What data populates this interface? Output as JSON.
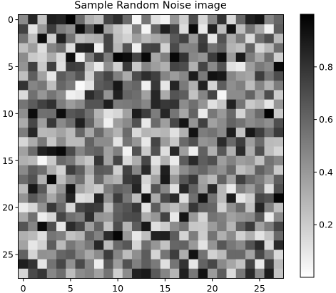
{
  "chart_data": {
    "type": "heatmap",
    "title": "Sample Random Noise image",
    "colormap": "gray_r",
    "rows": 28,
    "cols": 28,
    "x_ticks": [
      0,
      5,
      10,
      15,
      20,
      25
    ],
    "y_ticks": [
      0,
      5,
      10,
      15,
      20,
      25
    ],
    "x_tick_labels": [
      "0",
      "5",
      "10",
      "15",
      "20",
      "25"
    ],
    "y_tick_labels": [
      "0",
      "5",
      "10",
      "15",
      "20",
      "25"
    ],
    "colorbar": {
      "range": [
        0,
        1
      ],
      "ticks": [
        0.2,
        0.4,
        0.6,
        0.8
      ],
      "tick_labels": [
        "0.2",
        "0.4",
        "0.6",
        "0.8"
      ]
    },
    "values": [
      [
        0.46,
        0.85,
        0.24,
        0.88,
        0.86,
        0.99,
        0.58,
        0.31,
        0.25,
        0.73,
        0.82,
        0.58,
        0.03,
        0.54,
        0.12,
        0.05,
        0.42,
        0.19,
        0.7,
        0.16,
        0.47,
        0.8,
        0.15,
        0.6,
        0.87,
        0.92,
        0.48,
        0.6
      ],
      [
        0.74,
        0.11,
        0.4,
        0.76,
        0.51,
        0.44,
        0.95,
        0.65,
        0.94,
        0.38,
        0.23,
        0.13,
        0.5,
        0.04,
        0.6,
        0.88,
        0.73,
        0.14,
        0.96,
        0.09,
        0.87,
        0.26,
        0.93,
        0.25,
        0.55,
        0.34,
        0.06,
        0.63
      ],
      [
        0.55,
        0.26,
        0.95,
        0.19,
        0.88,
        0.55,
        0.25,
        0.3,
        0.32,
        0.73,
        0.25,
        0.18,
        0.38,
        0.28,
        0.34,
        0.38,
        0.65,
        0.74,
        0.4,
        0.75,
        0.09,
        0.68,
        0.33,
        0.51,
        0.14,
        0.56,
        0.69,
        0.27
      ],
      [
        0.25,
        0.38,
        0.13,
        0.48,
        0.56,
        0.13,
        0.86,
        0.88,
        0.06,
        0.73,
        0.28,
        0.67,
        0.06,
        0.73,
        0.74,
        0.18,
        0.71,
        0.48,
        0.49,
        0.78,
        0.55,
        0.62,
        0.3,
        0.25,
        0.61,
        0.16,
        0.28,
        0.57
      ],
      [
        0.45,
        0.21,
        0.17,
        0.33,
        0.14,
        0.94,
        0.05,
        0.51,
        0.76,
        0.51,
        0.98,
        0.95,
        0.73,
        0.97,
        0.35,
        0.5,
        0.97,
        0.8,
        0.47,
        0.42,
        0.76,
        0.94,
        0.39,
        0.9,
        0.51,
        0.35,
        0.57,
        0.19
      ],
      [
        0.42,
        0.75,
        0.21,
        0.75,
        0.12,
        0.76,
        0.74,
        0.26,
        0.08,
        0.44,
        0.18,
        0.77,
        0.21,
        0.48,
        0.38,
        0.31,
        0.73,
        0.7,
        0.31,
        0.73,
        0.46,
        0.67,
        0.12,
        0.08,
        0.38,
        0.52,
        0.46,
        0.96
      ],
      [
        0.25,
        0.63,
        0.37,
        0.1,
        0.64,
        0.56,
        0.67,
        0.19,
        0.62,
        0.73,
        0.5,
        0.33,
        0.7,
        0.82,
        0.75,
        0.48,
        0.39,
        0.47,
        0.89,
        0.52,
        0.93,
        0.9,
        0.47,
        0.38,
        0.35,
        0.76,
        0.54,
        0.7
      ],
      [
        0.8,
        0.48,
        0.53,
        0.26,
        0.6,
        0.52,
        0.02,
        0.11,
        0.64,
        0.68,
        0.91,
        0.56,
        0.6,
        0.06,
        0.78,
        0.1,
        0.86,
        0.52,
        0.31,
        0.87,
        0.17,
        0.63,
        0.44,
        0.5,
        0.26,
        0.48,
        0.3,
        0.51
      ],
      [
        0.14,
        0.56,
        0.41,
        0.54,
        0.45,
        0.06,
        0.09,
        0.83,
        0.73,
        0.42,
        0.87,
        0.6,
        0.57,
        0.37,
        0.85,
        0.33,
        0.67,
        0.63,
        0.24,
        0.48,
        0.73,
        0.04,
        0.45,
        0.45,
        0.61,
        0.38,
        0.7,
        0.2
      ],
      [
        0.54,
        0.64,
        0.74,
        0.81,
        0.51,
        0.39,
        0.46,
        0.67,
        0.67,
        0.88,
        0.51,
        0.52,
        0.55,
        0.47,
        0.85,
        0.78,
        0.8,
        0.45,
        0.56,
        0.42,
        0.12,
        0.23,
        0.87,
        0.54,
        0.21,
        0.28,
        0.1,
        0.41
      ],
      [
        0.44,
        0.95,
        0.56,
        0.57,
        0.95,
        0.66,
        0.7,
        0.56,
        0.3,
        0.12,
        0.16,
        0.37,
        0.89,
        0.76,
        0.51,
        0.85,
        0.54,
        0.35,
        0.61,
        0.08,
        0.53,
        0.4,
        0.59,
        0.17,
        0.44,
        0.58,
        0.99,
        0.21
      ],
      [
        0.33,
        0.72,
        0.38,
        0.78,
        0.46,
        0.57,
        0.88,
        0.61,
        0.35,
        0.06,
        0.38,
        0.46,
        0.68,
        0.09,
        0.58,
        0.38,
        0.72,
        0.92,
        0.42,
        0.75,
        0.37,
        0.45,
        0.61,
        0.55,
        0.45,
        0.5,
        0.44,
        0.69
      ],
      [
        0.51,
        0.85,
        0.28,
        0.29,
        0.36,
        0.27,
        0.6,
        0.34,
        0.59,
        0.4,
        0.3,
        0.58,
        0.15,
        0.29,
        0.26,
        0.29,
        0.12,
        0.31,
        0.93,
        0.51,
        0.55,
        0.46,
        0.89,
        0.24,
        0.91,
        0.76,
        0.57,
        0.77
      ],
      [
        0.16,
        0.33,
        0.53,
        0.22,
        0.45,
        0.27,
        0.27,
        0.61,
        0.45,
        0.45,
        0.11,
        0.54,
        0.41,
        0.09,
        0.73,
        0.39,
        0.22,
        0.59,
        0.69,
        0.42,
        0.45,
        0.83,
        0.59,
        0.76,
        0.38,
        0.58,
        0.27,
        0.26
      ],
      [
        0.37,
        0.58,
        0.87,
        0.92,
        0.97,
        0.71,
        0.48,
        0.59,
        0.62,
        0.37,
        0.5,
        0.05,
        0.68,
        0.21,
        0.68,
        0.13,
        0.84,
        0.38,
        0.07,
        0.62,
        0.31,
        0.66,
        0.31,
        0.83,
        0.32,
        0.69,
        0.26,
        0.17
      ],
      [
        0.31,
        0.28,
        0.03,
        0.21,
        0.59,
        0.53,
        0.31,
        0.22,
        0.79,
        0.36,
        0.73,
        0.15,
        0.32,
        0.72,
        0.11,
        0.31,
        0.08,
        0.64,
        0.84,
        0.63,
        0.69,
        0.38,
        0.49,
        0.38,
        0.41,
        0.24,
        0.55,
        0.47
      ],
      [
        0.46,
        0.64,
        0.57,
        0.32,
        0.18,
        0.76,
        0.63,
        0.34,
        0.65,
        0.63,
        0.19,
        0.74,
        0.47,
        0.84,
        0.22,
        0.88,
        0.25,
        0.45,
        0.54,
        0.6,
        0.49,
        0.43,
        0.59,
        0.25,
        0.32,
        0.62,
        0.52,
        0.21
      ],
      [
        0.58,
        0.68,
        0.31,
        0.97,
        0.26,
        0.45,
        0.56,
        0.25,
        0.59,
        0.35,
        0.3,
        0.77,
        0.81,
        0.17,
        0.37,
        0.9,
        0.4,
        0.66,
        0.78,
        0.36,
        0.27,
        0.61,
        0.36,
        0.75,
        0.59,
        0.51,
        0.36,
        0.63
      ],
      [
        0.27,
        0.91,
        0.65,
        0.24,
        0.42,
        0.92,
        0.36,
        0.26,
        0.2,
        0.51,
        0.62,
        0.58,
        0.86,
        0.12,
        0.67,
        0.47,
        0.12,
        0.85,
        0.61,
        0.39,
        0.84,
        0.28,
        0.08,
        0.5,
        0.39,
        0.57,
        0.13,
        0.69
      ],
      [
        0.42,
        0.65,
        0.54,
        0.34,
        0.52,
        0.86,
        0.13,
        0.16,
        0.86,
        0.43,
        0.76,
        0.53,
        0.26,
        0.93,
        0.33,
        0.71,
        0.83,
        0.13,
        0.56,
        0.92,
        0.55,
        0.27,
        0.89,
        0.1,
        0.2,
        0.72,
        0.68,
        0.98
      ],
      [
        0.08,
        0.16,
        0.43,
        0.78,
        0.59,
        0.16,
        0.73,
        0.78,
        0.76,
        0.26,
        0.62,
        0.67,
        0.78,
        0.11,
        0.64,
        0.34,
        0.26,
        0.38,
        0.79,
        0.62,
        0.6,
        0.18,
        0.44,
        0.58,
        0.24,
        0.86,
        0.49,
        0.25
      ],
      [
        0.34,
        0.56,
        0.07,
        0.16,
        0.73,
        0.56,
        0.51,
        0.82,
        0.42,
        0.4,
        0.64,
        0.7,
        0.71,
        0.32,
        0.41,
        0.74,
        0.09,
        0.92,
        0.4,
        0.17,
        0.55,
        0.5,
        0.37,
        0.42,
        0.45,
        0.65,
        0.08,
        0.46
      ],
      [
        0.67,
        0.48,
        0.96,
        0.69,
        0.1,
        0.83,
        0.72,
        0.38,
        0.61,
        0.24,
        0.7,
        0.3,
        0.64,
        0.91,
        0.13,
        0.2,
        0.45,
        0.54,
        0.22,
        0.21,
        0.39,
        0.51,
        0.29,
        0.61,
        0.77,
        0.37,
        0.51,
        0.73
      ],
      [
        0.31,
        0.27,
        0.13,
        0.54,
        0.5,
        0.24,
        0.29,
        0.61,
        0.49,
        0.83,
        0.98,
        0.4,
        0.09,
        0.25,
        0.87,
        0.88,
        0.64,
        0.17,
        0.51,
        0.2,
        0.55,
        0.31,
        0.45,
        0.18,
        0.31,
        0.11,
        0.23,
        0.59
      ],
      [
        0.36,
        0.1,
        0.18,
        0.64,
        0.27,
        0.53,
        0.43,
        0.53,
        0.85,
        0.27,
        0.59,
        0.66,
        0.17,
        0.56,
        0.41,
        0.24,
        0.6,
        0.61,
        0.4,
        0.11,
        0.42,
        0.66,
        0.53,
        0.46,
        0.67,
        0.83,
        0.15,
        0.84
      ],
      [
        0.62,
        0.17,
        0.43,
        0.42,
        0.6,
        0.64,
        0.47,
        0.34,
        0.45,
        0.76,
        0.48,
        0.26,
        0.44,
        0.64,
        0.17,
        0.54,
        0.76,
        0.32,
        0.93,
        0.55,
        0.18,
        0.27,
        0.59,
        0.59,
        0.36,
        0.72,
        0.5,
        0.15
      ],
      [
        0.88,
        0.8,
        0.1,
        0.55,
        0.72,
        0.43,
        0.71,
        0.48,
        0.07,
        0.66,
        0.39,
        0.68,
        0.5,
        0.63,
        0.52,
        0.12,
        0.54,
        0.8,
        0.1,
        0.61,
        0.72,
        0.46,
        0.35,
        0.24,
        0.73,
        0.09,
        0.77,
        0.27
      ],
      [
        0.16,
        0.71,
        0.79,
        0.47,
        0.57,
        0.26,
        0.45,
        0.49,
        0.37,
        0.55,
        0.19,
        0.45,
        0.87,
        0.9,
        0.65,
        0.48,
        0.29,
        0.88,
        0.53,
        0.93,
        0.39,
        0.64,
        0.14,
        0.53,
        0.84,
        0.46,
        0.89,
        0.23
      ]
    ]
  }
}
